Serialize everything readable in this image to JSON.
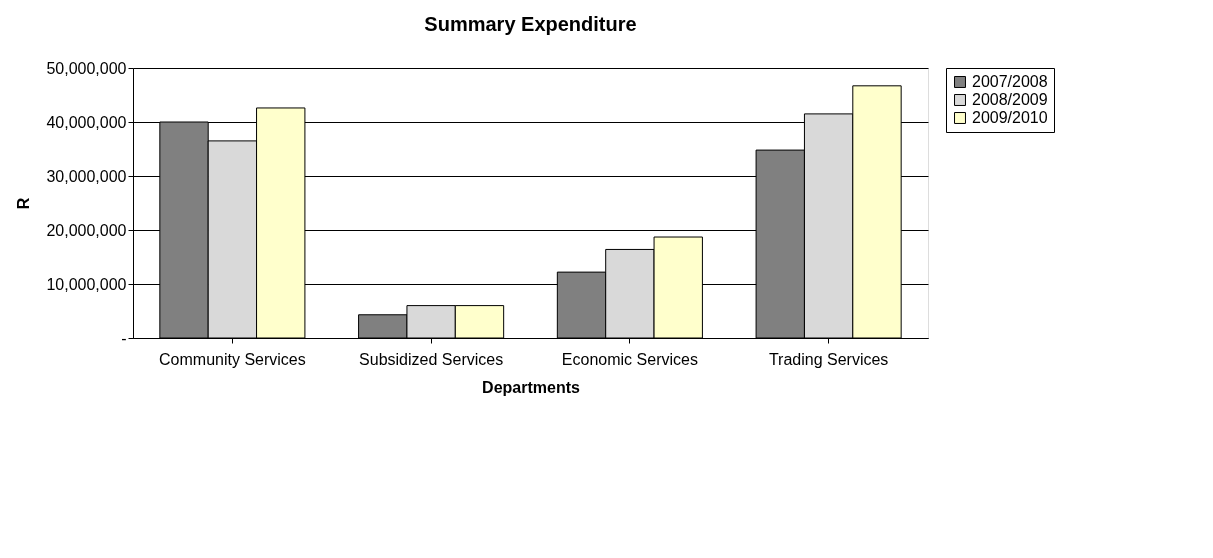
{
  "chart_data": {
    "type": "bar",
    "title": "Summary Expenditure",
    "xlabel": "Departments",
    "ylabel": "R",
    "categories": [
      "Community Services",
      "Subsidized Services",
      "Economic Services",
      "Trading Services"
    ],
    "series": [
      {
        "name": "2007/2008",
        "color": "#808080",
        "values": [
          40000000,
          4300000,
          12200000,
          34800000
        ]
      },
      {
        "name": "2008/2009",
        "color": "#d9d9d9",
        "values": [
          36500000,
          6000000,
          16400000,
          41500000
        ]
      },
      {
        "name": "2009/2010",
        "color": "#ffffcc",
        "values": [
          42600000,
          6000000,
          18700000,
          46700000
        ]
      }
    ],
    "ylim": [
      0,
      50000000
    ],
    "yticks": [
      {
        "value": 0,
        "label": "-"
      },
      {
        "value": 10000000,
        "label": "10,000,000"
      },
      {
        "value": 20000000,
        "label": "20,000,000"
      },
      {
        "value": 30000000,
        "label": "30,000,000"
      },
      {
        "value": 40000000,
        "label": "40,000,000"
      },
      {
        "value": 50000000,
        "label": "50,000,000"
      }
    ],
    "grid": "y",
    "legend": "right"
  }
}
